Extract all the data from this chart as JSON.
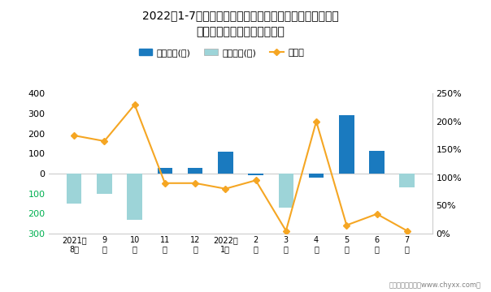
{
  "title": "2022年1-7月东风英菲尼迪旗下最畅销轿车（英菲尼迪）近\n一年库存情况及产销率统计图",
  "categories": [
    "2021年\n8月",
    "9\n月",
    "10\n月",
    "11\n月",
    "12\n月",
    "2022年\n1月",
    "2\n月",
    "3\n月",
    "4\n月",
    "5\n月",
    "6\n月",
    "7\n月"
  ],
  "jiiya_values": [
    0,
    0,
    0,
    30,
    30,
    110,
    -10,
    0,
    -20,
    290,
    115,
    0
  ],
  "qingcang_values": [
    -150,
    -100,
    -230,
    0,
    0,
    0,
    0,
    -170,
    0,
    0,
    0,
    -70
  ],
  "production_rate": [
    175,
    165,
    230,
    90,
    90,
    80,
    95,
    5,
    200,
    15,
    35,
    5
  ],
  "bar_color_jiiya": "#1a7abf",
  "bar_color_qingcang": "#9dd4d8",
  "line_color": "#f5a623",
  "ylim_left": [
    -300,
    400
  ],
  "ylim_right": [
    0,
    250
  ],
  "yticks_left": [
    -300,
    -200,
    -100,
    0,
    100,
    200,
    300,
    400
  ],
  "yticks_right": [
    0,
    50,
    100,
    150,
    200,
    250
  ],
  "ytick_labels_left": [
    "300",
    "200",
    "100",
    "0",
    "100",
    "200",
    "300",
    "400"
  ],
  "ytick_labels_right": [
    "0%",
    "50%",
    "100%",
    "150%",
    "200%",
    "250%"
  ],
  "legend_labels": [
    "积压库存(辆)",
    "清仓库存(辆)",
    "产销率"
  ],
  "footer": "制图：智研咨询（www.chyxx.com）",
  "background_color": "#ffffff",
  "left_tick_color_negative": "#00b050",
  "left_tick_color_zero": "#000000",
  "left_tick_color_positive": "#000000",
  "grid_color": "#cccccc"
}
